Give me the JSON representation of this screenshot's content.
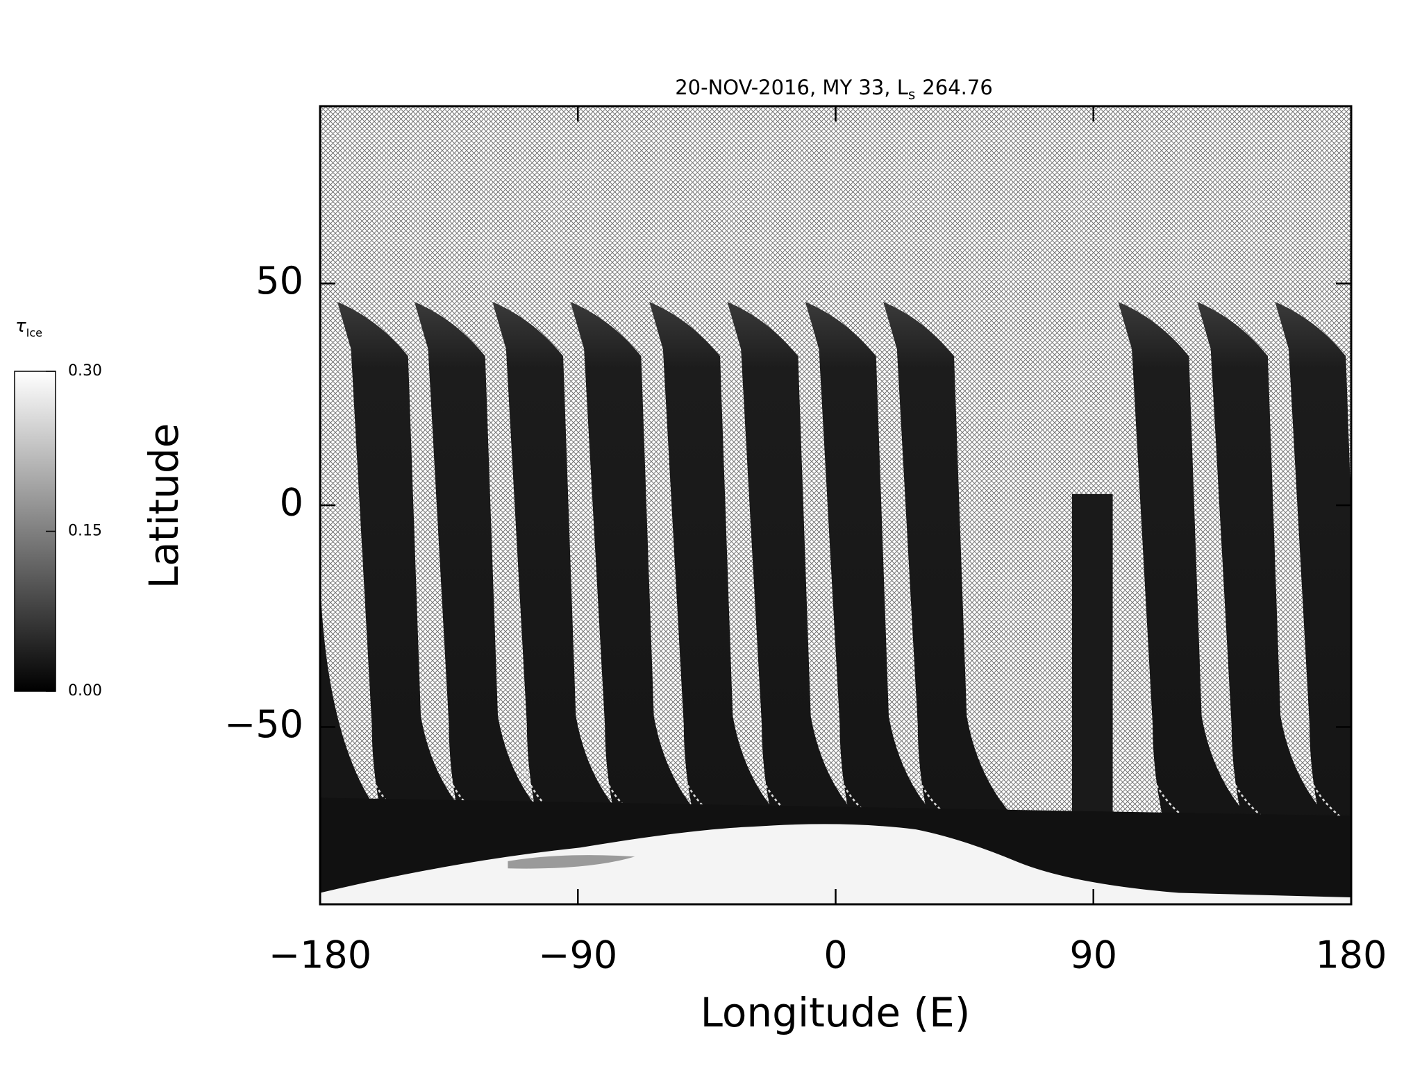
{
  "chart_data": {
    "type": "map",
    "title": "20-NOV-2016, MY 33,  L",
    "title_subscript": "s",
    "title_value": 264.76,
    "xlabel": "Longitude (E)",
    "ylabel": "Latitude",
    "xlim": [
      -180,
      180
    ],
    "xticks": [
      {
        "value": -180,
        "label": "−180"
      },
      {
        "value": -90,
        "label": "−90"
      },
      0,
      90,
      180
    ],
    "ylim": [
      -90,
      90
    ],
    "yticks": [
      {
        "value": -50,
        "label": "−50"
      },
      0,
      50
    ],
    "colorbar_label": "τ",
    "colorbar_label_subscript": "Ice",
    "clim": [
      0,
      0.3
    ],
    "cticks": [
      {
        "value": 0,
        "label": "0.00"
      },
      {
        "value": 0.15,
        "label": "0.15"
      },
      {
        "value": 0.3,
        "label": "0.30"
      }
    ]
  }
}
